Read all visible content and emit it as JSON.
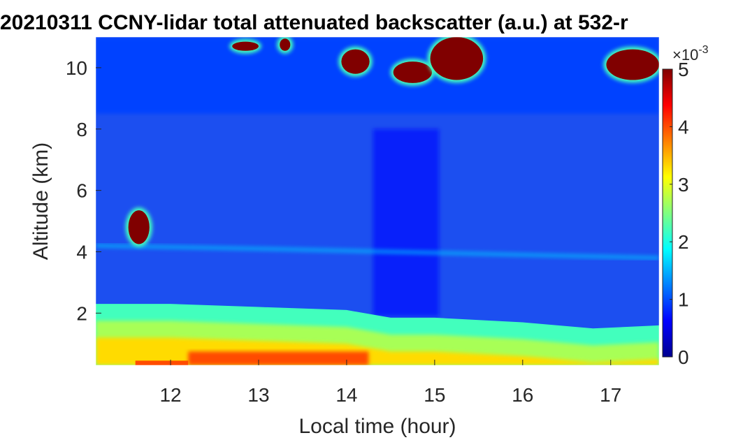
{
  "chart_data": {
    "type": "heatmap",
    "title": "20210311 CCNY-lidar total attenuated backscatter (a.u.) at 532-r",
    "xlabel": "Local time (hour)",
    "ylabel": "Altitude (km)",
    "xlim": [
      11.15,
      17.55
    ],
    "ylim": [
      0.3,
      11.0
    ],
    "x_ticks": [
      12,
      13,
      14,
      15,
      16,
      17
    ],
    "x_tick_labels": [
      "12",
      "13",
      "14",
      "15",
      "16",
      "17"
    ],
    "y_ticks": [
      2,
      4,
      6,
      8,
      10
    ],
    "y_tick_labels": [
      "2",
      "4",
      "6",
      "8",
      "10"
    ],
    "colorbar": {
      "colormap": "jet",
      "range": [
        0,
        5
      ],
      "ticks": [
        0,
        1,
        2,
        3,
        4,
        5
      ],
      "tick_labels": [
        "0",
        "1",
        "2",
        "3",
        "4",
        "5"
      ],
      "exponent_base": "×10",
      "exponent_power": "-3"
    },
    "field": {
      "boundary_layer_top_km": [
        {
          "x": 11.15,
          "y": 2.3
        },
        {
          "x": 12.0,
          "y": 2.3
        },
        {
          "x": 13.0,
          "y": 2.2
        },
        {
          "x": 14.0,
          "y": 2.1
        },
        {
          "x": 14.5,
          "y": 1.85
        },
        {
          "x": 15.0,
          "y": 1.85
        },
        {
          "x": 16.0,
          "y": 1.7
        },
        {
          "x": 16.8,
          "y": 1.5
        },
        {
          "x": 17.55,
          "y": 1.6
        }
      ],
      "low_aerosol_layer_km": [
        {
          "x": 11.15,
          "y": 4.2
        },
        {
          "x": 13.0,
          "y": 4.1
        },
        {
          "x": 14.5,
          "y": 4.0
        },
        {
          "x": 16.0,
          "y": 3.9
        },
        {
          "x": 17.55,
          "y": 3.8
        }
      ],
      "cloud_patches": [
        {
          "name": "low-cloud",
          "cx": 11.64,
          "cy": 4.8,
          "rx": 0.12,
          "ry": 0.55,
          "value": 5
        },
        {
          "name": "cirrus-1",
          "cx": 12.85,
          "cy": 10.7,
          "rx": 0.15,
          "ry": 0.15,
          "value": 5
        },
        {
          "name": "cirrus-2",
          "cx": 13.3,
          "cy": 10.75,
          "rx": 0.06,
          "ry": 0.2,
          "value": 5
        },
        {
          "name": "cirrus-3",
          "cx": 14.1,
          "cy": 10.2,
          "rx": 0.16,
          "ry": 0.4,
          "value": 5
        },
        {
          "name": "cirrus-4",
          "cx": 14.75,
          "cy": 9.85,
          "rx": 0.22,
          "ry": 0.35,
          "value": 5
        },
        {
          "name": "cirrus-5",
          "cx": 15.25,
          "cy": 10.3,
          "rx": 0.3,
          "ry": 0.7,
          "value": 5
        },
        {
          "name": "cirrus-6",
          "cx": 17.25,
          "cy": 10.1,
          "rx": 0.3,
          "ry": 0.5,
          "value": 5
        }
      ]
    }
  }
}
